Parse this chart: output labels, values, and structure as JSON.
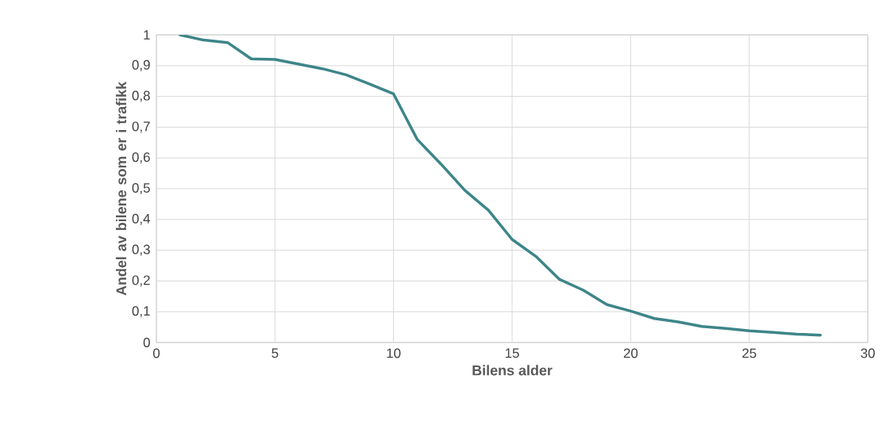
{
  "chart_data": {
    "type": "line",
    "xlabel": "Bilens alder",
    "ylabel": "Andel av bilene som er i trafikk",
    "x": [
      1,
      2,
      3,
      4,
      5,
      6,
      7,
      8,
      9,
      10,
      11,
      12,
      13,
      14,
      15,
      16,
      17,
      18,
      19,
      20,
      21,
      22,
      23,
      24,
      25,
      26,
      27,
      28
    ],
    "series": [
      {
        "color": "#3d8589",
        "values": [
          1.0,
          0.983,
          0.975,
          0.922,
          0.92,
          0.905,
          0.89,
          0.87,
          0.84,
          0.808,
          0.66,
          0.58,
          0.495,
          0.43,
          0.335,
          0.28,
          0.205,
          0.17,
          0.123,
          0.102,
          0.078,
          0.067,
          0.052,
          0.046,
          0.038,
          0.033,
          0.027,
          0.024
        ]
      }
    ],
    "xlim": [
      0,
      30
    ],
    "xticks": [
      0,
      5,
      10,
      15,
      20,
      25,
      30
    ],
    "ylim": [
      0,
      1
    ],
    "yticks": [
      0,
      {
        "value": 0.1,
        "label": "0,1"
      },
      {
        "value": 0.2,
        "label": "0,2"
      },
      {
        "value": 0.3,
        "label": "0,3"
      },
      {
        "value": 0.4,
        "label": "0,4"
      },
      {
        "value": 0.5,
        "label": "0,5"
      },
      {
        "value": 0.6,
        "label": "0,6"
      },
      {
        "value": 0.7,
        "label": "0,7"
      },
      {
        "value": 0.8,
        "label": "0,8"
      },
      {
        "value": 0.9,
        "label": "0,9"
      },
      1
    ],
    "grid": true,
    "marker": "none",
    "line_style": "solid"
  }
}
